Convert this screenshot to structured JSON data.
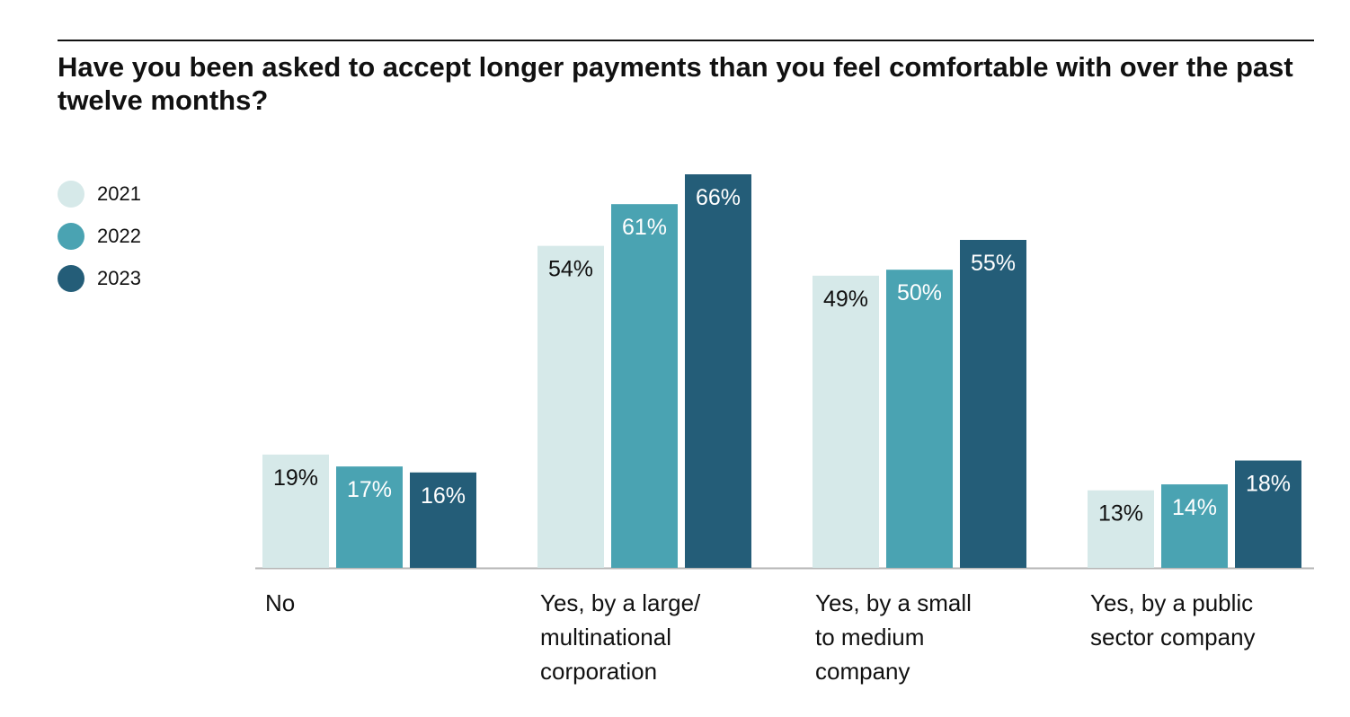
{
  "chart_data": {
    "type": "bar",
    "title": "Have you been asked to accept longer payments than you feel comfortable with over the past twelve months?",
    "categories": [
      [
        "No"
      ],
      [
        "Yes, by a large/",
        "multinational",
        "corporation"
      ],
      [
        "Yes, by a small",
        "to medium",
        "company"
      ],
      [
        "Yes, by a public",
        "sector company"
      ]
    ],
    "series": [
      {
        "name": "2021",
        "color": "#d6e9e9",
        "label_color": "#111111",
        "values": [
          19,
          54,
          49,
          13
        ],
        "labels": [
          "19%",
          "54%",
          "49%",
          "13%"
        ]
      },
      {
        "name": "2022",
        "color": "#4aa3b2",
        "label_color": "#ffffff",
        "values": [
          17,
          61,
          50,
          14
        ],
        "labels": [
          "17%",
          "61%",
          "50%",
          "14%"
        ]
      },
      {
        "name": "2023",
        "color": "#245d78",
        "label_color": "#ffffff",
        "values": [
          16,
          66,
          55,
          18
        ],
        "labels": [
          "16%",
          "66%",
          "55%",
          "18%"
        ]
      }
    ],
    "ylim": [
      0,
      66
    ],
    "grid": false,
    "legend_position": "top-left",
    "xlabel": "",
    "ylabel": ""
  }
}
